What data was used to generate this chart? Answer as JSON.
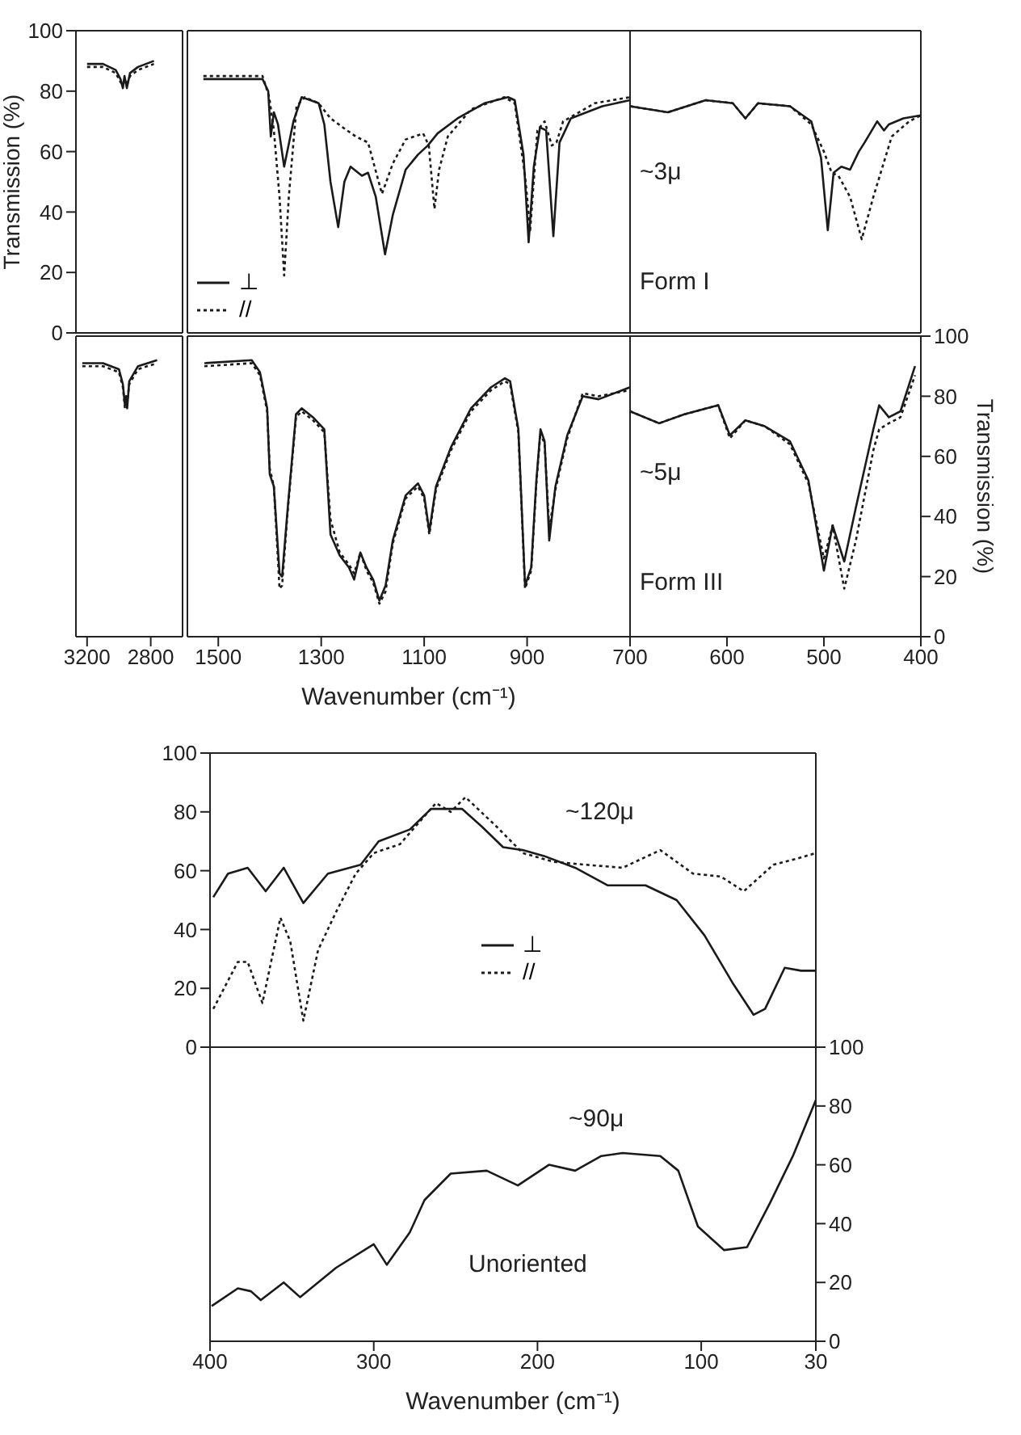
{
  "chart_data": [
    {
      "type": "line",
      "xlim": [
        3270,
        2600
      ],
      "xticks": [
        3200,
        2800
      ],
      "ylim": [
        0,
        100
      ],
      "yticks": [
        0,
        20,
        40,
        60,
        80,
        100
      ],
      "ylabel": "Transmission (%)",
      "tick_labels": "y",
      "series": [
        {
          "color": "#1a1a1a",
          "line_style": "solid",
          "x": [
            3200,
            3100,
            3020,
            2990,
            2975,
            2965,
            2950,
            2930,
            2880,
            2780
          ],
          "values": [
            89,
            89,
            87,
            84,
            81,
            85,
            81,
            86,
            88,
            90
          ]
        },
        {
          "color": "#1a1a1a",
          "line_style": "dotted",
          "x": [
            3200,
            3100,
            3020,
            2990,
            2975,
            2965,
            2950,
            2930,
            2880,
            2780
          ],
          "values": [
            88,
            88,
            86,
            83,
            82,
            84,
            82,
            85,
            87,
            89
          ]
        }
      ]
    },
    {
      "type": "line",
      "xlim": [
        1560,
        700
      ],
      "xticks": [
        1500,
        1300,
        1100,
        900,
        700
      ],
      "ylim": [
        0,
        100
      ],
      "yticks": [
        0,
        20,
        40,
        60,
        80,
        100
      ],
      "tick_labels": false,
      "legend": "bottom left",
      "series": [
        {
          "name": "⊥",
          "color": "#1a1a1a",
          "line_style": "solid",
          "x": [
            1529,
            1414,
            1403,
            1398,
            1392,
            1384,
            1372,
            1354,
            1338,
            1321,
            1305,
            1294,
            1282,
            1267,
            1255,
            1243,
            1221,
            1209,
            1194,
            1176,
            1161,
            1136,
            1112,
            1093,
            1074,
            1035,
            983,
            937,
            924,
            907,
            897,
            887,
            875,
            863,
            849,
            837,
            815,
            754,
            700
          ],
          "values": [
            84,
            84,
            80,
            65,
            73,
            69,
            55,
            70,
            78,
            77,
            76,
            69,
            50,
            35,
            50,
            55,
            52,
            53,
            45,
            26,
            39,
            54,
            59,
            62,
            66,
            71,
            76,
            78,
            77,
            59,
            30,
            55,
            68,
            67,
            32,
            63,
            71,
            75,
            77
          ]
        },
        {
          "name": "//",
          "color": "#1a1a1a",
          "line_style": "dotted",
          "x": [
            1529,
            1414,
            1401,
            1392,
            1381,
            1372,
            1363,
            1348,
            1332,
            1305,
            1282,
            1258,
            1233,
            1209,
            1182,
            1161,
            1136,
            1102,
            1091,
            1080,
            1071,
            1054,
            1009,
            944,
            924,
            904,
            894,
            880,
            866,
            852,
            843,
            830,
            769,
            700
          ],
          "values": [
            85,
            85,
            78,
            67,
            45,
            19,
            45,
            75,
            78,
            76,
            71,
            68,
            65,
            63,
            46,
            56,
            64,
            66,
            62,
            41,
            54,
            65,
            74,
            78,
            76,
            52,
            34,
            67,
            70,
            62,
            63,
            70,
            76,
            78
          ]
        }
      ]
    },
    {
      "type": "line",
      "xlim": [
        700,
        400
      ],
      "xticks": [
        600,
        500,
        400
      ],
      "ylim": [
        0,
        100
      ],
      "yticks": [
        0,
        20,
        40,
        60,
        80,
        100
      ],
      "tick_labels": false,
      "annotations": [
        "~3μ",
        "Form I"
      ],
      "series": [
        {
          "color": "#1a1a1a",
          "line_style": "solid",
          "x": [
            700,
            661,
            622,
            594,
            581,
            568,
            535,
            513,
            503,
            496,
            490,
            482,
            473,
            464,
            458,
            445,
            438,
            433,
            418,
            400
          ],
          "values": [
            75,
            73,
            77,
            76,
            71,
            76,
            75,
            70,
            58,
            34,
            53,
            55,
            54,
            60,
            63,
            70,
            67,
            69,
            71,
            72
          ]
        },
        {
          "color": "#1a1a1a",
          "line_style": "dotted",
          "x": [
            700,
            661,
            622,
            594,
            581,
            568,
            535,
            513,
            500,
            492,
            485,
            473,
            461,
            449,
            430,
            412,
            400
          ],
          "values": [
            75,
            73,
            77,
            76,
            71,
            76,
            75,
            69,
            60,
            53,
            52,
            45,
            31,
            45,
            65,
            70,
            72
          ]
        }
      ]
    },
    {
      "type": "line",
      "xlim": [
        3270,
        2600
      ],
      "xticks": [
        3200,
        2800
      ],
      "ylim": [
        0,
        100
      ],
      "yticks": [
        0,
        20,
        40,
        60,
        80,
        100
      ],
      "tick_labels": "x",
      "series": [
        {
          "color": "#1a1a1a",
          "line_style": "solid",
          "x": [
            3230,
            3100,
            3000,
            2975,
            2962,
            2955,
            2948,
            2935,
            2880,
            2760
          ],
          "values": [
            91,
            91,
            89,
            84,
            77,
            80,
            76,
            85,
            90,
            92
          ]
        },
        {
          "color": "#1a1a1a",
          "line_style": "dotted",
          "x": [
            3230,
            3100,
            3000,
            2975,
            2962,
            2955,
            2948,
            2935,
            2880,
            2760
          ],
          "values": [
            90,
            90,
            88,
            83,
            76,
            79,
            78,
            84,
            89,
            91
          ]
        }
      ]
    },
    {
      "type": "line",
      "xlim": [
        1560,
        700
      ],
      "xticks": [
        1500,
        1300,
        1100,
        900,
        700
      ],
      "ylim": [
        0,
        100
      ],
      "yticks": [
        0,
        20,
        40,
        60,
        80,
        100
      ],
      "tick_labels": "x",
      "xlabel": "Wavenumber (cm⁻¹)",
      "series": [
        {
          "color": "#1a1a1a",
          "line_style": "solid",
          "x": [
            1527,
            1435,
            1419,
            1405,
            1400,
            1392,
            1381,
            1376,
            1365,
            1349,
            1338,
            1316,
            1294,
            1282,
            1264,
            1246,
            1236,
            1224,
            1212,
            1199,
            1187,
            1175,
            1161,
            1136,
            1112,
            1100,
            1090,
            1077,
            1048,
            1009,
            970,
            943,
            933,
            917,
            904,
            892,
            882,
            874,
            866,
            857,
            845,
            822,
            792,
            761,
            700
          ],
          "values": [
            91,
            92,
            88,
            76,
            54,
            50,
            21,
            20,
            43,
            74,
            76,
            73,
            69,
            34,
            27,
            23,
            19,
            28,
            23,
            19,
            12,
            17,
            32,
            47,
            51,
            47,
            35,
            50,
            63,
            76,
            83,
            86,
            85,
            69,
            17,
            23,
            52,
            69,
            65,
            32,
            50,
            67,
            80,
            79,
            83
          ]
        },
        {
          "color": "#1a1a1a",
          "line_style": "dotted",
          "x": [
            1527,
            1435,
            1419,
            1405,
            1400,
            1392,
            1381,
            1376,
            1365,
            1349,
            1338,
            1316,
            1294,
            1282,
            1264,
            1246,
            1236,
            1224,
            1212,
            1199,
            1187,
            1175,
            1161,
            1136,
            1112,
            1100,
            1090,
            1077,
            1048,
            1009,
            970,
            943,
            933,
            917,
            904,
            892,
            882,
            874,
            866,
            857,
            845,
            822,
            792,
            761,
            700
          ],
          "values": [
            90,
            91,
            87,
            75,
            56,
            50,
            16,
            17,
            42,
            73,
            75,
            72,
            68,
            39,
            28,
            24,
            21,
            28,
            22,
            18,
            11,
            15,
            31,
            46,
            50,
            46,
            34,
            49,
            62,
            75,
            82,
            85,
            84,
            68,
            16,
            22,
            51,
            68,
            64,
            36,
            49,
            66,
            81,
            80,
            82
          ]
        }
      ]
    },
    {
      "type": "line",
      "xlim": [
        700,
        400
      ],
      "xticks": [
        600,
        500,
        400
      ],
      "ylim": [
        0,
        100
      ],
      "yticks": [
        0,
        20,
        40,
        60,
        80,
        100
      ],
      "ylabel": "Transmission (%)",
      "annotations": [
        "~5μ",
        "Form III"
      ],
      "series": [
        {
          "color": "#1a1a1a",
          "line_style": "solid",
          "x": [
            700,
            670,
            644,
            609,
            597,
            581,
            561,
            535,
            516,
            500,
            491,
            479,
            467,
            449,
            443,
            433,
            421,
            406
          ],
          "values": [
            75,
            71,
            74,
            77,
            67,
            72,
            70,
            65,
            52,
            22,
            37,
            25,
            43,
            69,
            77,
            73,
            75,
            90
          ]
        },
        {
          "color": "#1a1a1a",
          "line_style": "dotted",
          "x": [
            700,
            670,
            644,
            609,
            597,
            581,
            561,
            535,
            516,
            500,
            491,
            479,
            467,
            449,
            443,
            433,
            421,
            406
          ],
          "values": [
            75,
            71,
            74,
            77,
            66,
            72,
            70,
            64,
            51,
            26,
            37,
            16,
            32,
            62,
            69,
            71,
            73,
            87
          ]
        }
      ]
    },
    {
      "type": "line",
      "xlim": [
        400,
        30
      ],
      "xticks": [
        400,
        300,
        200,
        100,
        30
      ],
      "ylim": [
        0,
        100
      ],
      "yticks": [
        0,
        20,
        40,
        60,
        80,
        100
      ],
      "tick_labels": "y",
      "legend": "bottom",
      "annotations": [
        "~120μ"
      ],
      "series": [
        {
          "name": "⊥",
          "color": "#1a1a1a",
          "line_style": "solid",
          "x": [
            398,
            389,
            377,
            366,
            355,
            343,
            328,
            308,
            297,
            278,
            265,
            246,
            234,
            221,
            209,
            196,
            177,
            157,
            134,
            115,
            98,
            81,
            68,
            61,
            49,
            39,
            30
          ],
          "values": [
            51,
            59,
            61,
            53,
            61,
            49,
            59,
            62,
            70,
            74,
            81,
            81,
            75,
            68,
            67,
            65,
            61,
            55,
            55,
            50,
            38,
            22,
            11,
            13,
            27,
            26,
            26
          ]
        },
        {
          "name": "//",
          "color": "#1a1a1a",
          "line_style": "dotted",
          "x": [
            398,
            383,
            377,
            368,
            357,
            351,
            343,
            334,
            323,
            311,
            300,
            284,
            262,
            253,
            244,
            225,
            209,
            190,
            170,
            148,
            125,
            105,
            88,
            74,
            56,
            42,
            30
          ],
          "values": [
            13,
            29,
            29,
            15,
            44,
            36,
            9,
            33,
            46,
            59,
            66,
            69,
            83,
            80,
            85,
            75,
            66,
            63,
            62,
            61,
            67,
            59,
            58,
            53,
            62,
            64,
            66
          ]
        }
      ]
    },
    {
      "type": "line",
      "xlim": [
        400,
        30
      ],
      "xticks": [
        400,
        300,
        200,
        100,
        30
      ],
      "ylim": [
        0,
        100
      ],
      "yticks": [
        0,
        20,
        40,
        60,
        80,
        100
      ],
      "xlabel": "Wavenumber (cm⁻¹)",
      "annotations": [
        "~90μ",
        "Unoriented"
      ],
      "series": [
        {
          "color": "#1a1a1a",
          "line_style": "solid",
          "x": [
            399,
            383,
            375,
            369,
            355,
            345,
            323,
            300,
            292,
            278,
            269,
            253,
            231,
            212,
            193,
            177,
            161,
            148,
            125,
            114,
            102,
            86,
            72,
            58,
            44,
            30
          ],
          "values": [
            12,
            18,
            17,
            14,
            20,
            15,
            25,
            33,
            26,
            37,
            48,
            57,
            58,
            53,
            60,
            58,
            63,
            64,
            63,
            58,
            39,
            31,
            32,
            47,
            63,
            82
          ]
        }
      ]
    }
  ]
}
